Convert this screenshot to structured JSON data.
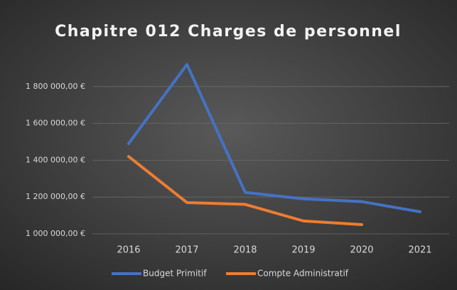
{
  "chart_data": {
    "type": "line",
    "title": "Chapitre 012 Charges de personnel",
    "categories": [
      "2016",
      "2017",
      "2018",
      "2019",
      "2020",
      "2021"
    ],
    "series": [
      {
        "name": "Budget Primitif",
        "color": "#4472c4",
        "values": [
          1490000,
          1920000,
          1225000,
          1190000,
          1175000,
          1120000
        ]
      },
      {
        "name": "Compte Administratif",
        "color": "#ed7d31",
        "values": [
          1420000,
          1170000,
          1160000,
          1070000,
          1050000,
          null
        ]
      }
    ],
    "ylim": [
      1000000,
      2000000
    ],
    "yticks": [
      {
        "value": 1000000,
        "label": "1 000 000,00 €"
      },
      {
        "value": 1200000,
        "label": "1 200 000,00 €"
      },
      {
        "value": 1400000,
        "label": "1 400 000,00 €"
      },
      {
        "value": 1600000,
        "label": "1 600 000,00 €"
      },
      {
        "value": 1800000,
        "label": "1 800 000,00 €"
      }
    ],
    "grid": true,
    "legend": "bottom"
  }
}
